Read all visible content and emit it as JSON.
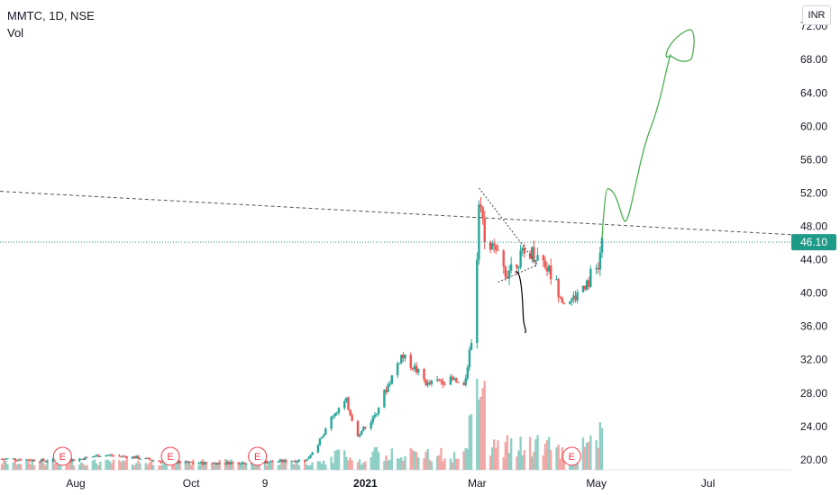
{
  "header": {
    "symbol_line": "MMTC, 1D, NSE",
    "indicator": "Vol",
    "currency_button": "INR"
  },
  "colors": {
    "up": "#26a69a",
    "down": "#ef5350",
    "vol_up": "#8fcfc6",
    "vol_down": "#f2a8a6",
    "price_tag": "#1e9b88",
    "drawing_green": "#4caf50",
    "drawing_black": "#000000",
    "earnings": "#f23645"
  },
  "chart_data": {
    "type": "candlestick",
    "title": "MMTC, 1D, NSE",
    "ylim": [
      18.8,
      74.5
    ],
    "y_ticks": [
      "72.00",
      "68.00",
      "64.00",
      "60.00",
      "56.00",
      "52.00",
      "48.00",
      "44.00",
      "40.00",
      "36.00",
      "32.00",
      "28.00",
      "24.00",
      "20.00"
    ],
    "x_ticks": [
      {
        "label": "Aug",
        "date": "2020-08-01",
        "bold": false
      },
      {
        "label": "Oct",
        "date": "2020-10-01",
        "bold": false
      },
      {
        "label": "9",
        "date": "2020-11-09",
        "bold": false
      },
      {
        "label": "2021",
        "date": "2021-01-01",
        "bold": true
      },
      {
        "label": "Mar",
        "date": "2021-03-01",
        "bold": false
      },
      {
        "label": "May",
        "date": "2021-05-03",
        "bold": false
      },
      {
        "label": "Jul",
        "date": "2021-07-01",
        "bold": false
      }
    ],
    "x_range": [
      "2020-06-22",
      "2021-08-14"
    ],
    "last_price": "46.10",
    "last_price_value": 46.1,
    "price_series": [
      [
        "2020-07-01",
        20.1
      ],
      [
        "2020-07-15",
        19.9
      ],
      [
        "2020-08-01",
        20.0
      ],
      [
        "2020-08-15",
        20.6
      ],
      [
        "2020-09-01",
        20.3
      ],
      [
        "2020-09-15",
        19.8
      ],
      [
        "2020-10-01",
        19.6
      ],
      [
        "2020-10-15",
        19.6
      ],
      [
        "2020-11-01",
        19.7
      ],
      [
        "2020-11-15",
        19.8
      ],
      [
        "2020-12-01",
        20.0
      ],
      [
        "2020-12-10",
        23.0
      ],
      [
        "2020-12-15",
        25.5
      ],
      [
        "2020-12-22",
        27.0
      ],
      [
        "2020-12-28",
        23.0
      ],
      [
        "2021-01-05",
        25.0
      ],
      [
        "2021-01-12",
        28.5
      ],
      [
        "2021-01-20",
        32.5
      ],
      [
        "2021-01-27",
        31.0
      ],
      [
        "2021-02-03",
        29.0
      ],
      [
        "2021-02-10",
        29.5
      ],
      [
        "2021-02-17",
        29.5
      ],
      [
        "2021-02-22",
        28.5
      ],
      [
        "2021-02-25",
        33.0
      ],
      [
        "2021-02-27",
        36.0
      ],
      [
        "2021-03-01",
        44.0
      ],
      [
        "2021-03-02",
        51.5
      ],
      [
        "2021-03-05",
        47.0
      ],
      [
        "2021-03-10",
        45.0
      ],
      [
        "2021-03-16",
        42.5
      ],
      [
        "2021-03-22",
        44.0
      ],
      [
        "2021-03-29",
        45.0
      ],
      [
        "2021-04-05",
        44.0
      ],
      [
        "2021-04-12",
        41.0
      ],
      [
        "2021-04-16",
        39.0
      ],
      [
        "2021-04-22",
        39.5
      ],
      [
        "2021-04-28",
        41.5
      ],
      [
        "2021-05-04",
        43.0
      ],
      [
        "2021-05-06",
        46.1
      ]
    ],
    "earnings_dates": [
      "2020-07-25",
      "2020-09-20",
      "2020-11-05",
      "2021-04-20"
    ],
    "volume_spikes": [
      [
        "2021-02-26",
        0.45
      ],
      [
        "2021-03-01",
        0.75
      ],
      [
        "2021-03-03",
        0.6
      ],
      [
        "2021-03-05",
        0.7
      ],
      [
        "2021-05-06",
        0.36
      ]
    ]
  }
}
